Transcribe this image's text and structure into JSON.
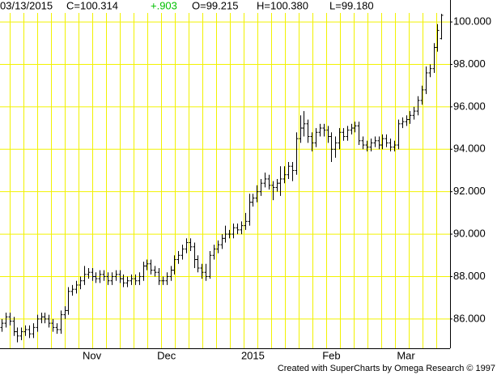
{
  "chart_data": {
    "type": "ohlc",
    "header": [
      {
        "text": "03/13/2015",
        "color": "#000000"
      },
      {
        "text": "C=100.314",
        "color": "#000000"
      },
      {
        "text": "+.903",
        "color": "#00c000"
      },
      {
        "text": "O=99.215",
        "color": "#000000"
      },
      {
        "text": "H=100.380",
        "color": "#000000"
      },
      {
        "text": "L=99.180",
        "color": "#000000"
      }
    ],
    "footer": "Created with SuperCharts by Omega Research © 1997",
    "color": "#000000",
    "grid_color": "#f2f200",
    "grid": true,
    "categories": [
      null,
      null,
      null,
      null,
      null,
      null,
      null,
      null,
      null,
      null,
      null,
      null,
      null,
      null,
      null,
      null,
      null,
      null,
      null,
      null,
      null,
      null,
      null,
      "Nov",
      null,
      null,
      null,
      null,
      null,
      null,
      null,
      null,
      null,
      null,
      null,
      null,
      null,
      null,
      null,
      null,
      null,
      null,
      "Dec",
      null,
      null,
      null,
      null,
      null,
      null,
      null,
      null,
      null,
      null,
      null,
      null,
      null,
      null,
      null,
      null,
      null,
      null,
      null,
      null,
      null,
      "2015",
      null,
      null,
      null,
      null,
      null,
      null,
      null,
      null,
      null,
      null,
      null,
      null,
      null,
      null,
      null,
      null,
      null,
      null,
      null,
      "Feb",
      null,
      null,
      null,
      null,
      null,
      null,
      null,
      null,
      null,
      null,
      null,
      null,
      null,
      null,
      null,
      null,
      null,
      null,
      "Mar",
      null,
      null,
      null,
      null,
      null,
      null,
      null,
      null,
      null
    ],
    "open": [
      85.6,
      85.8,
      86.1,
      85.9,
      85.4,
      85.2,
      85.4,
      85.5,
      85.3,
      85.6,
      86.0,
      86.1,
      86.0,
      85.8,
      85.6,
      85.5,
      86.2,
      86.4,
      87.3,
      87.4,
      87.6,
      87.8,
      88.1,
      88.2,
      88.0,
      87.9,
      88.1,
      88.0,
      87.8,
      88.0,
      88.1,
      87.9,
      87.7,
      87.8,
      87.9,
      87.8,
      88.0,
      88.5,
      88.6,
      88.3,
      88.2,
      87.8,
      87.8,
      88.0,
      88.3,
      88.8,
      89.0,
      89.3,
      89.6,
      89.4,
      88.8,
      88.4,
      88.2,
      88.0,
      89.0,
      89.3,
      89.5,
      89.8,
      90.0,
      90.0,
      90.3,
      90.2,
      90.4,
      90.6,
      91.5,
      91.7,
      92.0,
      92.4,
      92.6,
      92.3,
      92.2,
      92.4,
      92.6,
      92.8,
      93.2,
      93.0,
      94.5,
      95.0,
      95.2,
      94.6,
      94.3,
      94.8,
      95.0,
      94.9,
      94.6,
      94.0,
      94.3,
      94.8,
      94.6,
      94.9,
      95.0,
      95.1,
      94.4,
      94.2,
      94.1,
      94.3,
      94.4,
      94.2,
      94.5,
      94.3,
      94.1,
      94.2,
      95.2,
      95.3,
      95.4,
      95.6,
      95.8,
      96.3,
      96.8,
      97.6,
      97.8,
      98.8,
      99.215
    ],
    "high": [
      86.0,
      86.3,
      86.3,
      86.1,
      85.6,
      85.6,
      85.7,
      85.7,
      85.8,
      86.2,
      86.3,
      86.3,
      86.2,
      86.0,
      85.8,
      86.4,
      86.6,
      87.5,
      87.6,
      87.8,
      88.0,
      88.5,
      88.4,
      88.4,
      88.2,
      88.3,
      88.3,
      88.2,
      88.2,
      88.3,
      88.3,
      88.1,
      88.0,
      88.1,
      88.1,
      88.2,
      88.7,
      88.8,
      88.8,
      88.5,
      88.4,
      88.0,
      88.2,
      88.5,
      89.0,
      89.2,
      89.5,
      89.8,
      89.8,
      89.6,
      89.0,
      88.6,
      88.6,
      89.2,
      89.5,
      89.7,
      90.0,
      90.4,
      90.2,
      90.5,
      90.5,
      90.6,
      91.0,
      91.9,
      91.9,
      92.3,
      92.6,
      92.9,
      92.8,
      92.5,
      92.6,
      93.2,
      93.2,
      93.4,
      93.4,
      94.8,
      95.6,
      95.8,
      95.4,
      94.8,
      95.0,
      95.2,
      95.2,
      95.1,
      94.8,
      94.6,
      95.0,
      95.0,
      95.1,
      95.2,
      95.3,
      95.3,
      94.6,
      94.4,
      94.5,
      94.6,
      94.6,
      94.7,
      94.7,
      94.5,
      94.4,
      95.4,
      95.5,
      95.6,
      95.8,
      96.0,
      96.5,
      97.0,
      97.9,
      98.0,
      99.0,
      99.9,
      100.38
    ],
    "low": [
      85.4,
      85.6,
      85.7,
      85.2,
      84.9,
      85.0,
      85.2,
      85.1,
      85.1,
      85.4,
      85.8,
      85.8,
      85.6,
      85.4,
      85.3,
      85.3,
      86.0,
      86.2,
      87.1,
      87.2,
      87.4,
      87.6,
      87.9,
      87.8,
      87.7,
      87.7,
      87.8,
      87.6,
      87.6,
      87.8,
      87.7,
      87.5,
      87.5,
      87.6,
      87.6,
      87.6,
      87.8,
      88.3,
      88.1,
      88.0,
      87.6,
      87.6,
      87.6,
      87.8,
      88.1,
      88.6,
      88.8,
      89.1,
      89.2,
      88.4,
      88.2,
      87.9,
      87.8,
      87.9,
      88.8,
      89.1,
      89.3,
      89.6,
      89.8,
      89.8,
      90.0,
      90.0,
      90.2,
      90.4,
      91.3,
      91.5,
      91.8,
      92.2,
      92.1,
      91.6,
      92.0,
      91.8,
      92.4,
      92.6,
      92.5,
      92.8,
      94.3,
      94.6,
      94.3,
      93.9,
      94.1,
      94.6,
      94.6,
      94.3,
      93.4,
      93.6,
      94.0,
      94.4,
      94.4,
      94.7,
      94.8,
      94.2,
      94.0,
      93.9,
      93.9,
      94.1,
      94.0,
      94.0,
      94.1,
      93.9,
      93.9,
      94.0,
      95.0,
      95.1,
      95.2,
      95.4,
      95.6,
      96.1,
      96.6,
      97.4,
      97.6,
      98.6,
      99.18
    ],
    "close": [
      85.8,
      86.1,
      85.9,
      85.4,
      85.2,
      85.4,
      85.5,
      85.3,
      85.6,
      86.0,
      86.1,
      86.0,
      85.8,
      85.6,
      85.5,
      86.2,
      86.4,
      87.3,
      87.4,
      87.6,
      87.8,
      88.1,
      88.2,
      88.0,
      87.9,
      88.1,
      88.0,
      87.8,
      88.0,
      88.1,
      87.9,
      87.7,
      87.8,
      87.9,
      87.8,
      88.0,
      88.5,
      88.6,
      88.3,
      88.2,
      87.8,
      87.8,
      88.0,
      88.3,
      88.8,
      89.0,
      89.3,
      89.6,
      89.4,
      88.8,
      88.4,
      88.2,
      88.0,
      89.0,
      89.3,
      89.5,
      89.8,
      90.0,
      90.0,
      90.3,
      90.2,
      90.4,
      90.6,
      91.5,
      91.7,
      92.0,
      92.4,
      92.6,
      92.3,
      92.2,
      92.4,
      92.6,
      92.8,
      93.2,
      93.0,
      94.5,
      95.0,
      95.2,
      94.6,
      94.3,
      94.8,
      95.0,
      94.9,
      94.6,
      94.0,
      94.3,
      94.8,
      94.6,
      94.9,
      95.0,
      95.1,
      94.4,
      94.2,
      94.1,
      94.3,
      94.4,
      94.2,
      94.5,
      94.3,
      94.1,
      94.2,
      95.2,
      95.3,
      95.4,
      95.6,
      95.8,
      96.3,
      96.8,
      97.6,
      97.8,
      98.8,
      99.6,
      100.314
    ],
    "ylim": [
      84.62,
      100.5
    ],
    "yticks": [
      {
        "value": 86,
        "label": "86.000"
      },
      {
        "value": 88,
        "label": "88.000"
      },
      {
        "value": 90,
        "label": "90.000"
      },
      {
        "value": 92,
        "label": "92.000"
      },
      {
        "value": 94,
        "label": "94.000"
      },
      {
        "value": 96,
        "label": "96.000"
      },
      {
        "value": 98,
        "label": "98.000"
      },
      {
        "value": 100,
        "label": "100.000"
      }
    ]
  }
}
